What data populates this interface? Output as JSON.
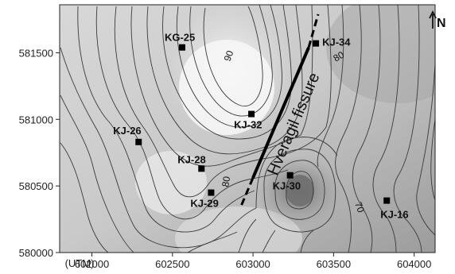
{
  "map": {
    "x_ticks": [
      "602000",
      "602500",
      "603000",
      "603500",
      "604000"
    ],
    "y_ticks": [
      "580000",
      "580500",
      "581000",
      "581500"
    ],
    "unit_label": "(UTM)",
    "north_label": "N",
    "fault_label": "Hveragil fissure",
    "extent": {
      "x": [
        601800,
        604130
      ],
      "y": [
        580000,
        581860
      ]
    },
    "colors": {
      "light": "#f7f7f7",
      "dark": "#7d7d7d",
      "contour": "#3a3a3a",
      "fault": "#000000"
    },
    "wells": [
      {
        "label": "KG-25",
        "x": 602560,
        "y": 581540
      },
      {
        "label": "KJ-34",
        "x": 603390,
        "y": 581570
      },
      {
        "label": "KJ-32",
        "x": 602990,
        "y": 581040
      },
      {
        "label": "KJ-26",
        "x": 602290,
        "y": 580830
      },
      {
        "label": "KJ-28",
        "x": 602680,
        "y": 580630
      },
      {
        "label": "KJ-29",
        "x": 602740,
        "y": 580450
      },
      {
        "label": "KJ-30",
        "x": 603230,
        "y": 580580
      },
      {
        "label": "KJ-16",
        "x": 603830,
        "y": 580390
      }
    ],
    "contour_labels": [
      "90",
      "80",
      "80",
      "70"
    ]
  }
}
